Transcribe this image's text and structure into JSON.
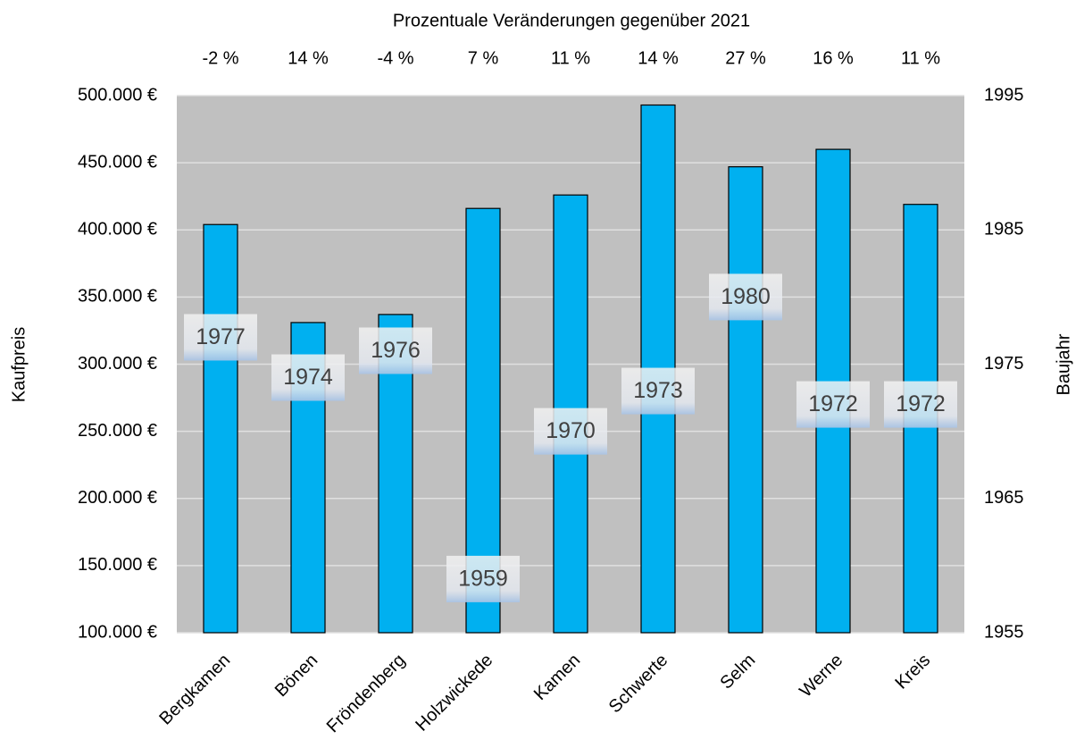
{
  "chart_data": {
    "type": "bar",
    "title": "Prozentuale Veränderungen gegenüber 2021",
    "y_label": "Kaufpreis",
    "y2_label": "Baujahr",
    "categories": [
      "Bergkamen",
      "Bönen",
      "Fröndenberg",
      "Holzwickede",
      "Kamen",
      "Schwerte",
      "Selm",
      "Werne",
      "Kreis"
    ],
    "series": [
      {
        "color": "#00b0f0",
        "values": [
          404000,
          331000,
          337000,
          416000,
          426000,
          493000,
          447000,
          460000,
          419000
        ]
      },
      {
        "axis": "y2",
        "values": [
          1977,
          1974,
          1976,
          1959,
          1970,
          1973,
          1980,
          1972,
          1972
        ]
      }
    ],
    "changes": {
      "values": [
        -2,
        14,
        -4,
        7,
        11,
        14,
        27,
        16,
        11
      ],
      "value_labels": [
        "-2 %",
        "14 %",
        "-4 %",
        "7 %",
        "11 %",
        "14 %",
        "27 %",
        "16 %",
        "11 %"
      ]
    },
    "ylim": [
      100000,
      500000
    ],
    "yticks": [
      {
        "value": 100000,
        "label": "100.000 €"
      },
      {
        "value": 150000,
        "label": "150.000 €"
      },
      {
        "value": 200000,
        "label": "200.000 €"
      },
      {
        "value": 250000,
        "label": "250.000 €"
      },
      {
        "value": 300000,
        "label": "300.000 €"
      },
      {
        "value": 350000,
        "label": "350.000 €"
      },
      {
        "value": 400000,
        "label": "400.000 €"
      },
      {
        "value": 450000,
        "label": "450.000 €"
      },
      {
        "value": 500000,
        "label": "500.000 €"
      }
    ],
    "y2lim": [
      1955,
      1995
    ],
    "y2ticks": [
      1955,
      1965,
      1975,
      1985,
      1995
    ],
    "grid": true,
    "background": "#c0c0c0"
  }
}
